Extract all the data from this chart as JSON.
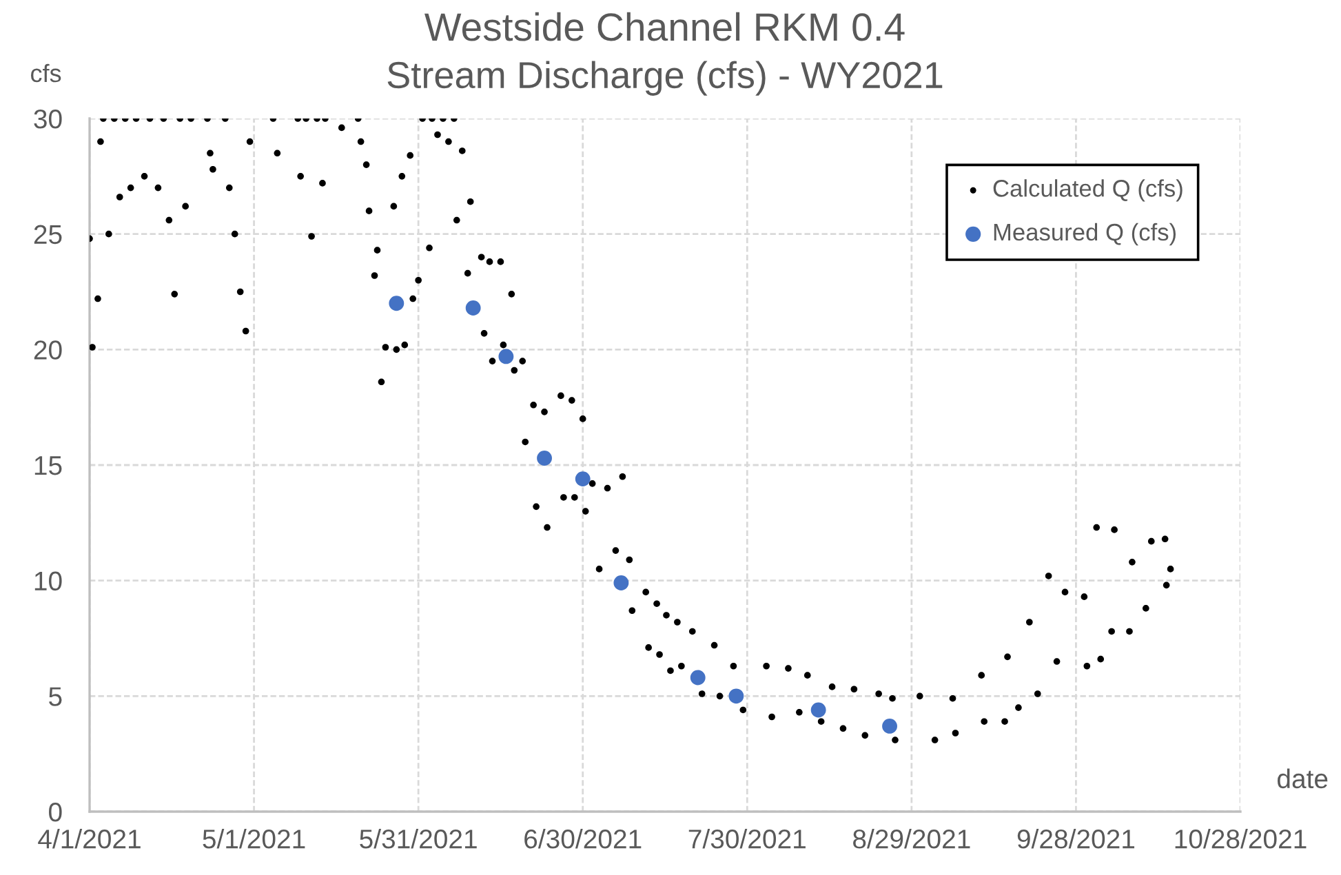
{
  "chart_data": {
    "type": "scatter",
    "title": "Westside Channel RKM 0.4",
    "subtitle": "Stream Discharge (cfs) - WY2021",
    "xlabel": "date",
    "ylabel": "cfs",
    "xlim": [
      "2021-04-01",
      "2021-10-28"
    ],
    "xticks": [
      {
        "value": "2021-04-01",
        "label": "4/1/2021"
      },
      {
        "value": "2021-05-01",
        "label": "5/1/2021"
      },
      {
        "value": "2021-05-31",
        "label": "5/31/2021"
      },
      {
        "value": "2021-06-30",
        "label": "6/30/2021"
      },
      {
        "value": "2021-07-30",
        "label": "7/30/2021"
      },
      {
        "value": "2021-08-29",
        "label": "8/29/2021"
      },
      {
        "value": "2021-09-28",
        "label": "9/28/2021"
      },
      {
        "value": "2021-10-28",
        "label": "10/28/2021"
      }
    ],
    "ylim": [
      0,
      30
    ],
    "yticks": [
      0,
      5,
      10,
      15,
      20,
      25,
      30
    ],
    "grid": true,
    "legend": "top right",
    "marker": "circle",
    "series": [
      {
        "name": "Calculated Q (cfs)",
        "color": "#000000",
        "x": [
          "2021-04-01T00:00",
          "2021-04-01T12:00",
          "2021-04-02T12:00",
          "2021-04-03T00:00",
          "2021-04-03T12:00",
          "2021-04-04T12:00",
          "2021-04-05T12:00",
          "2021-04-06T12:00",
          "2021-04-07T12:00",
          "2021-04-08T12:00",
          "2021-04-09T12:00",
          "2021-04-11T00:00",
          "2021-04-12T00:00",
          "2021-04-13T12:00",
          "2021-04-14T12:00",
          "2021-04-15T12:00",
          "2021-04-16T12:00",
          "2021-04-17T12:00",
          "2021-04-18T12:00",
          "2021-04-19T12:00",
          "2021-04-22T12:00",
          "2021-04-23T00:00",
          "2021-04-23T12:00",
          "2021-04-25T18:00",
          "2021-04-26T12:00",
          "2021-04-27T12:00",
          "2021-04-28T12:00",
          "2021-04-29T12:00",
          "2021-04-30T06:00",
          "2021-05-04T12:00",
          "2021-05-05T06:00",
          "2021-05-09T00:00",
          "2021-05-09T12:00",
          "2021-05-10T12:00",
          "2021-05-11T12:00",
          "2021-05-12T12:00",
          "2021-05-13T12:00",
          "2021-05-14T00:00",
          "2021-05-17T00:00",
          "2021-05-20T00:00",
          "2021-05-20T12:00",
          "2021-05-21T12:00",
          "2021-05-22T00:00",
          "2021-05-23T00:00",
          "2021-05-23T12:00",
          "2021-05-24T06:00",
          "2021-05-25T00:00",
          "2021-05-26T12:00",
          "2021-05-27T00:00",
          "2021-05-28T00:00",
          "2021-05-28T12:00",
          "2021-05-29T12:00",
          "2021-05-30T00:00",
          "2021-05-31T00:00",
          "2021-05-31T18:00",
          "2021-06-02T00:00",
          "2021-06-02T12:00",
          "2021-06-03T12:00",
          "2021-06-04T12:00",
          "2021-06-05T12:00",
          "2021-06-06T12:00",
          "2021-06-07T00:00",
          "2021-06-08T00:00",
          "2021-06-09T00:00",
          "2021-06-09T12:00",
          "2021-06-11T12:00",
          "2021-06-12T00:00",
          "2021-06-13T00:00",
          "2021-06-13T12:00",
          "2021-06-15T00:00",
          "2021-06-15T12:00",
          "2021-06-17T00:00",
          "2021-06-17T12:00",
          "2021-06-19T00:00",
          "2021-06-19T12:00",
          "2021-06-21T00:00",
          "2021-06-21T12:00",
          "2021-06-23T00:00",
          "2021-06-23T12:00",
          "2021-06-26T00:00",
          "2021-06-26T12:00",
          "2021-06-28T00:00",
          "2021-06-28T12:00",
          "2021-06-30T00:00",
          "2021-06-30T12:00",
          "2021-07-01T18:00",
          "2021-07-03T00:00",
          "2021-07-04T12:00",
          "2021-07-06T00:00",
          "2021-07-07T06:00",
          "2021-07-08T12:00",
          "2021-07-09T00:00",
          "2021-07-11T12:00",
          "2021-07-12T00:00",
          "2021-07-13T12:00",
          "2021-07-14T00:00",
          "2021-07-15T06:00",
          "2021-07-16T00:00",
          "2021-07-17T06:00",
          "2021-07-18T00:00",
          "2021-07-20T00:00",
          "2021-07-21T18:00",
          "2021-07-24T00:00",
          "2021-07-25T00:00",
          "2021-07-27T12:00",
          "2021-07-29T06:00",
          "2021-08-02T12:00",
          "2021-08-03T12:00",
          "2021-08-06T12:00",
          "2021-08-08T12:00",
          "2021-08-10T00:00",
          "2021-08-12T12:00",
          "2021-08-14T12:00",
          "2021-08-16T12:00",
          "2021-08-18T12:00",
          "2021-08-20T12:00",
          "2021-08-23T00:00",
          "2021-08-25T12:00",
          "2021-08-26T00:00",
          "2021-08-30T12:00",
          "2021-09-02T06:00",
          "2021-09-05T12:00",
          "2021-09-06T00:00",
          "2021-09-10T18:00",
          "2021-09-11T06:00",
          "2021-09-15T00:00",
          "2021-09-15T12:00",
          "2021-09-17T12:00",
          "2021-09-19T12:00",
          "2021-09-21T00:00",
          "2021-09-23T00:00",
          "2021-09-24T12:00",
          "2021-09-26T00:00",
          "2021-09-29T12:00",
          "2021-09-30T00:00",
          "2021-10-01T18:00",
          "2021-10-02T12:00",
          "2021-10-04T12:00",
          "2021-10-05T00:00",
          "2021-10-07T18:00",
          "2021-10-08T06:00",
          "2021-10-10T18:00",
          "2021-10-11T18:00",
          "2021-10-14T06:00",
          "2021-10-14T12:00",
          "2021-10-15T06:00"
        ],
        "values": [
          24.8,
          20.1,
          22.2,
          29.0,
          30.0,
          25.0,
          30.0,
          26.6,
          30.0,
          27.0,
          30.0,
          27.5,
          30.0,
          27.0,
          30.0,
          25.6,
          22.4,
          30.0,
          26.2,
          30.0,
          30.0,
          28.5,
          27.8,
          30.0,
          27.0,
          25.0,
          22.5,
          20.8,
          29.0,
          30.0,
          28.5,
          30.0,
          27.5,
          30.0,
          24.9,
          30.0,
          27.2,
          30.0,
          29.6,
          30.0,
          29.0,
          28.0,
          26.0,
          23.2,
          24.3,
          18.6,
          20.1,
          26.2,
          20.0,
          27.5,
          20.2,
          28.4,
          22.2,
          23.0,
          30.0,
          24.4,
          30.0,
          29.3,
          30.0,
          29.0,
          30.0,
          25.6,
          28.6,
          23.3,
          26.4,
          24.0,
          20.7,
          23.8,
          19.5,
          23.8,
          20.2,
          22.4,
          19.1,
          19.5,
          16.0,
          17.6,
          13.2,
          17.3,
          12.3,
          18.0,
          13.6,
          17.8,
          13.6,
          17.0,
          13.0,
          14.2,
          10.5,
          14.0,
          11.3,
          14.5,
          10.9,
          8.7,
          9.5,
          7.1,
          9.0,
          6.8,
          8.5,
          6.1,
          8.2,
          6.3,
          7.8,
          5.1,
          7.2,
          5.0,
          6.3,
          4.4,
          6.3,
          4.1,
          6.2,
          4.3,
          5.9,
          3.9,
          5.4,
          3.6,
          5.3,
          3.3,
          5.1,
          4.9,
          3.1,
          5.0,
          3.1,
          4.9,
          3.4,
          5.9,
          3.9,
          3.9,
          6.7,
          4.5,
          8.2,
          5.1,
          10.2,
          6.5,
          9.5,
          9.3,
          6.3,
          12.3,
          6.6,
          7.8,
          12.2,
          7.8,
          10.8,
          8.8,
          11.7,
          11.8,
          9.8,
          10.5
        ]
      },
      {
        "name": "Measured Q (cfs)",
        "color": "#4472c4",
        "x": [
          "2021-05-27",
          "2021-06-10",
          "2021-06-16",
          "2021-06-23",
          "2021-06-30",
          "2021-07-07",
          "2021-07-21",
          "2021-07-28",
          "2021-08-12",
          "2021-08-25"
        ],
        "values": [
          22.0,
          21.8,
          19.7,
          15.3,
          14.4,
          9.9,
          5.8,
          5.0,
          4.4,
          3.7
        ]
      }
    ]
  }
}
